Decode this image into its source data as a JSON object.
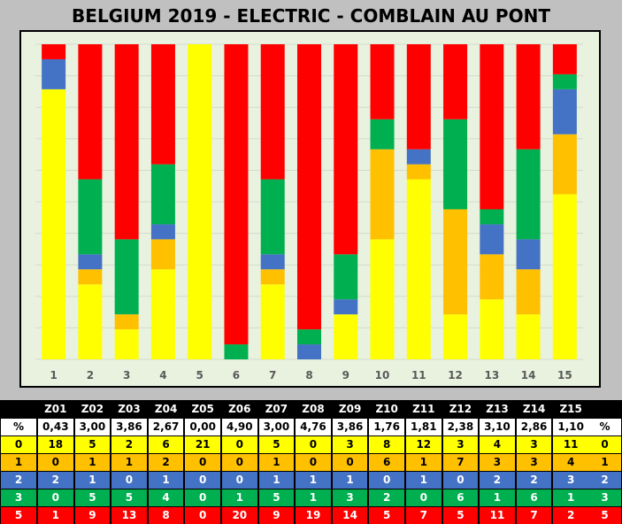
{
  "title": "BELGIUM 2019 - ELECTRIC - COMBLAIN AU PONT",
  "colors": {
    "0": "#ffff00",
    "1": "#ffc000",
    "2": "#4472c4",
    "3": "#00b050",
    "5": "#ff0000"
  },
  "chart_data": {
    "type": "bar",
    "stacked": true,
    "normalized": true,
    "categories": [
      "1",
      "2",
      "3",
      "4",
      "5",
      "6",
      "7",
      "8",
      "9",
      "10",
      "11",
      "12",
      "13",
      "14",
      "15"
    ],
    "series": [
      {
        "name": "0",
        "values": [
          18,
          5,
          2,
          6,
          21,
          0,
          5,
          0,
          3,
          8,
          12,
          3,
          4,
          3,
          11
        ]
      },
      {
        "name": "1",
        "values": [
          0,
          1,
          1,
          2,
          0,
          0,
          1,
          0,
          0,
          6,
          1,
          7,
          3,
          3,
          4
        ]
      },
      {
        "name": "2",
        "values": [
          2,
          1,
          0,
          1,
          0,
          0,
          1,
          1,
          1,
          0,
          1,
          0,
          2,
          2,
          3
        ]
      },
      {
        "name": "3",
        "values": [
          0,
          5,
          5,
          4,
          0,
          1,
          5,
          1,
          3,
          2,
          0,
          6,
          1,
          6,
          1
        ]
      },
      {
        "name": "5",
        "values": [
          1,
          9,
          13,
          8,
          0,
          20,
          9,
          19,
          14,
          5,
          7,
          5,
          11,
          7,
          2
        ]
      }
    ],
    "grid": true,
    "legend": "none"
  },
  "table": {
    "header": [
      "Z01",
      "Z02",
      "Z03",
      "Z04",
      "Z05",
      "Z06",
      "Z07",
      "Z08",
      "Z09",
      "Z10",
      "Z11",
      "Z12",
      "Z13",
      "Z14",
      "Z15"
    ],
    "percent_label": "%",
    "percent": [
      "0,43",
      "3,00",
      "3,86",
      "2,67",
      "0,00",
      "4,90",
      "3,00",
      "4,76",
      "3,86",
      "1,76",
      "1,81",
      "2,38",
      "3,10",
      "2,86",
      "1,10"
    ],
    "rows": [
      {
        "label": "0",
        "values": [
          "18",
          "5",
          "2",
          "6",
          "21",
          "0",
          "5",
          "0",
          "3",
          "8",
          "12",
          "3",
          "4",
          "3",
          "11"
        ],
        "end": "0"
      },
      {
        "label": "1",
        "values": [
          "0",
          "1",
          "1",
          "2",
          "0",
          "0",
          "1",
          "0",
          "0",
          "6",
          "1",
          "7",
          "3",
          "3",
          "4"
        ],
        "end": "1"
      },
      {
        "label": "2",
        "values": [
          "2",
          "1",
          "0",
          "1",
          "0",
          "0",
          "1",
          "1",
          "1",
          "0",
          "1",
          "0",
          "2",
          "2",
          "3"
        ],
        "end": "2"
      },
      {
        "label": "3",
        "values": [
          "0",
          "5",
          "5",
          "4",
          "0",
          "1",
          "5",
          "1",
          "3",
          "2",
          "0",
          "6",
          "1",
          "6",
          "1"
        ],
        "end": "3"
      },
      {
        "label": "5",
        "values": [
          "1",
          "9",
          "13",
          "8",
          "0",
          "20",
          "9",
          "19",
          "14",
          "5",
          "7",
          "5",
          "11",
          "7",
          "2"
        ],
        "end": "5"
      }
    ]
  }
}
